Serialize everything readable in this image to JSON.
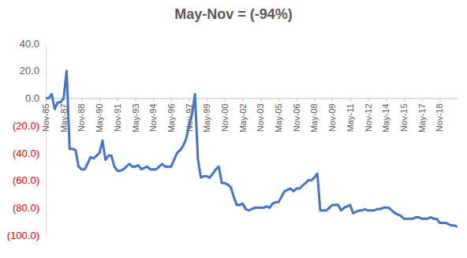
{
  "chart_data": {
    "type": "line",
    "title": "May-Nov = (-94%)",
    "categories": [
      "Nov-85",
      null,
      null,
      null,
      null,
      null,
      "May-87",
      null,
      null,
      null,
      null,
      null,
      "Nov-88",
      null,
      null,
      null,
      null,
      null,
      "May-90",
      null,
      null,
      null,
      null,
      null,
      "Nov-91",
      null,
      null,
      null,
      null,
      null,
      "May-93",
      null,
      null,
      null,
      null,
      null,
      "Nov-94",
      null,
      null,
      null,
      null,
      null,
      "May-96",
      null,
      null,
      null,
      null,
      null,
      "Nov-97",
      null,
      null,
      null,
      null,
      null,
      "May-99",
      null,
      null,
      null,
      null,
      null,
      "Nov-00",
      null,
      null,
      null,
      null,
      null,
      "May-02",
      null,
      null,
      null,
      null,
      null,
      "Nov-03",
      null,
      null,
      null,
      null,
      null,
      "May-05",
      null,
      null,
      null,
      null,
      null,
      "Nov-06",
      null,
      null,
      null,
      null,
      null,
      "May-08",
      null,
      null,
      null,
      null,
      null,
      "Nov-09",
      null,
      null,
      null,
      null,
      null,
      "May-11",
      null,
      null,
      null,
      null,
      null,
      "Nov-12",
      null,
      null,
      null,
      null,
      null,
      "May-14",
      null,
      null,
      null,
      null,
      null,
      "Nov-15",
      null,
      null,
      null,
      null,
      null,
      "May-17",
      null,
      null,
      null,
      null,
      null,
      "Nov-18",
      null,
      null,
      null,
      null,
      null,
      null
    ],
    "series": [
      {
        "color": "#4472c4",
        "values": [
          0,
          0,
          3,
          -8,
          -3,
          -3,
          0,
          20,
          -37,
          -37,
          -38,
          -50,
          -52,
          -52,
          -48,
          -43,
          -44,
          -42,
          -40,
          -31,
          -45,
          -42,
          -42,
          -50,
          -53,
          -53,
          -52,
          -50,
          -48,
          -50,
          -50,
          -49,
          -52,
          -51,
          -50,
          -52,
          -52,
          -52,
          -50,
          -48,
          -50,
          -50,
          -50,
          -45,
          -40,
          -38,
          -35,
          -30,
          -20,
          -12,
          3,
          -45,
          -58,
          -57,
          -57,
          -58,
          -55,
          -52,
          -50,
          -62,
          -62,
          -63,
          -65,
          -72,
          -78,
          -78,
          -77,
          -81,
          -82,
          -81,
          -80,
          -80,
          -80,
          -80,
          -79,
          -80,
          -77,
          -76,
          -76,
          -72,
          -68,
          -67,
          -66,
          -68,
          -66,
          -66,
          -64,
          -62,
          -60,
          -60,
          -58,
          -55,
          -82,
          -82,
          -82,
          -80,
          -78,
          -78,
          -78,
          -82,
          -80,
          -79,
          -78,
          -84,
          -83,
          -82,
          -82,
          -81,
          -82,
          -82,
          -82,
          -81,
          -81,
          -80,
          -80,
          -80,
          -82,
          -84,
          -85,
          -86,
          -88,
          -88,
          -88,
          -88,
          -87,
          -87,
          -88,
          -88,
          -88,
          -87,
          -88,
          -88,
          -91,
          -91,
          -91,
          -92,
          -93,
          -93,
          -94
        ]
      }
    ],
    "ylim": [
      -100,
      40
    ],
    "yticks": [
      {
        "value": 40,
        "label": "40.0"
      },
      {
        "value": 20,
        "label": "20.0"
      },
      {
        "value": 0,
        "label": "0.0"
      },
      {
        "value": -20,
        "label": "(20.0)"
      },
      {
        "value": -40,
        "label": "(40.0)"
      },
      {
        "value": -60,
        "label": "(60.0)"
      },
      {
        "value": -80,
        "label": "(80.0)"
      },
      {
        "value": -100,
        "label": "(100.0)"
      }
    ],
    "grid": false
  }
}
